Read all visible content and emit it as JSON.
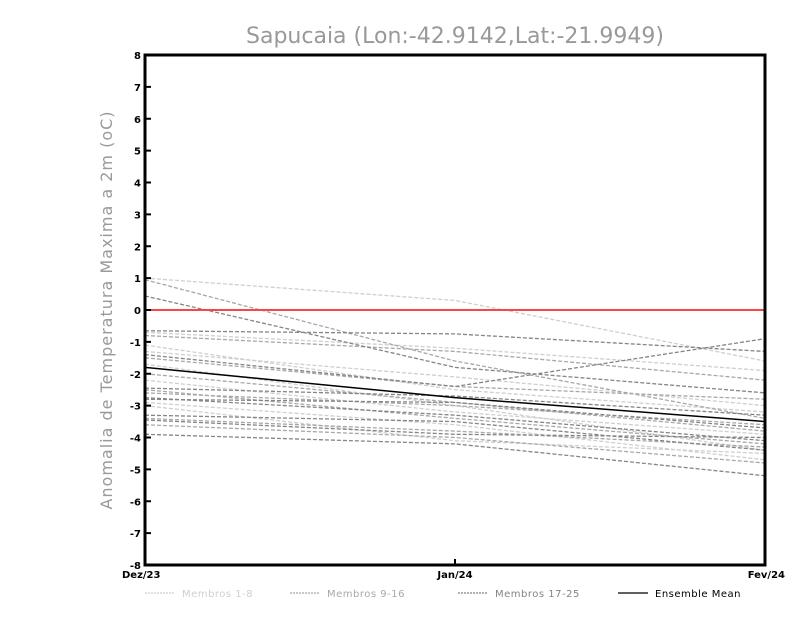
{
  "chart_data": {
    "type": "line",
    "title": "Sapucaia (Lon:-42.9142,Lat:-21.9949)",
    "xlabel": "",
    "ylabel": "Anomalia de Temperatura Maxima a 2m (oC)",
    "categories": [
      "Dez/23",
      "Jan/24",
      "Fev/24"
    ],
    "ylim": [
      -8,
      8
    ],
    "yticks": [
      "-8",
      "-7",
      "-6",
      "-5",
      "-4",
      "-3",
      "-2",
      "-1",
      "0",
      "1",
      "2",
      "3",
      "4",
      "5",
      "6",
      "7",
      "8"
    ],
    "reference_line": {
      "value": 0,
      "color": "#ff4444"
    },
    "legend_position": "bottom",
    "groups": [
      {
        "name": "Membros 1-8",
        "color": "#cfcfcf",
        "series": [
          [
            1.0,
            0.3,
            -1.6
          ],
          [
            -0.7,
            -1.2,
            -1.9
          ],
          [
            -1.1,
            -2.5,
            -3.2
          ],
          [
            -1.7,
            -3.0,
            -4.4
          ],
          [
            -2.2,
            -3.2,
            -3.9
          ],
          [
            -2.9,
            -3.6,
            -4.7
          ],
          [
            -3.0,
            -4.1,
            -4.5
          ],
          [
            -1.3,
            -2.1,
            -3.0
          ]
        ]
      },
      {
        "name": "Membros 9-16",
        "color": "#a8a8a8",
        "series": [
          [
            0.95,
            -1.6,
            -3.4
          ],
          [
            -0.8,
            -1.3,
            -2.2
          ],
          [
            -2.0,
            -2.9,
            -3.8
          ],
          [
            -2.5,
            -3.4,
            -4.2
          ],
          [
            -3.4,
            -3.8,
            -4.3
          ],
          [
            -3.6,
            -4.0,
            -4.8
          ],
          [
            -2.6,
            -3.0,
            -3.6
          ],
          [
            -1.5,
            -2.4,
            -2.8
          ]
        ]
      },
      {
        "name": "Membros 17-25",
        "color": "#858585",
        "series": [
          [
            0.44,
            -1.8,
            -2.6
          ],
          [
            -0.65,
            -0.75,
            -1.3
          ],
          [
            -1.4,
            -2.4,
            -0.9
          ],
          [
            -2.45,
            -2.7,
            -3.3
          ],
          [
            -2.75,
            -3.3,
            -4.1
          ],
          [
            -3.3,
            -3.5,
            -4.4
          ],
          [
            -3.9,
            -4.2,
            -5.2
          ],
          [
            -2.8,
            -2.9,
            -3.7
          ],
          [
            -3.45,
            -3.9,
            -4.0
          ]
        ]
      }
    ],
    "ensemble_mean": {
      "name": "Ensemble Mean",
      "color": "#000000",
      "values": [
        -1.8,
        -2.75,
        -3.5
      ]
    }
  }
}
